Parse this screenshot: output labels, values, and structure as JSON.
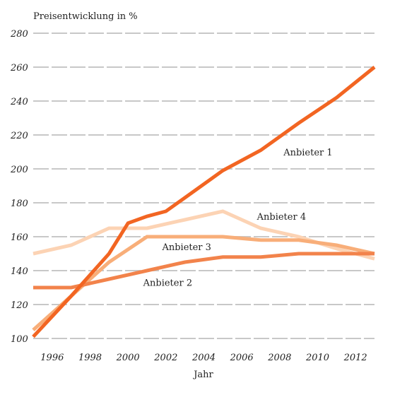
{
  "chart_data": {
    "type": "line",
    "ylabel": "Preisentwicklung in %",
    "xlabel": "Jahr",
    "xlim": [
      1995,
      2013
    ],
    "ylim": [
      100,
      280
    ],
    "xticks": [
      1996,
      1998,
      2000,
      2002,
      2004,
      2006,
      2008,
      2010,
      2012
    ],
    "yticks": [
      100,
      120,
      140,
      160,
      180,
      200,
      220,
      240,
      260,
      280
    ],
    "grid": true,
    "series": [
      {
        "name": "Anbieter 4",
        "color": "#fcd3b4",
        "x": [
          1995,
          1997,
          1999,
          2001,
          2003,
          2005,
          2007,
          2009,
          2011,
          2013
        ],
        "y": [
          150,
          155,
          165,
          165,
          170,
          175,
          165,
          160,
          153,
          147
        ]
      },
      {
        "name": "Anbieter 3",
        "color": "#f8ae79",
        "x": [
          1995,
          1997,
          1999,
          2001,
          2003,
          2005,
          2007,
          2009,
          2011,
          2013
        ],
        "y": [
          105,
          125,
          145,
          160,
          160,
          160,
          158,
          158,
          155,
          150
        ]
      },
      {
        "name": "Anbieter 2",
        "color": "#f2834b",
        "x": [
          1995,
          1997,
          1999,
          2001,
          2003,
          2005,
          2007,
          2009,
          2011,
          2013
        ],
        "y": [
          130,
          130,
          135,
          140,
          145,
          148,
          148,
          150,
          150,
          150
        ]
      },
      {
        "name": "Anbieter 1",
        "color": "#f26522",
        "x": [
          1995,
          1997,
          1999,
          2000,
          2001,
          2002,
          2003,
          2005,
          2007,
          2009,
          2011,
          2013
        ],
        "y": [
          101,
          125,
          150,
          168,
          172,
          175,
          183,
          199,
          211,
          227,
          242,
          260
        ]
      }
    ]
  }
}
